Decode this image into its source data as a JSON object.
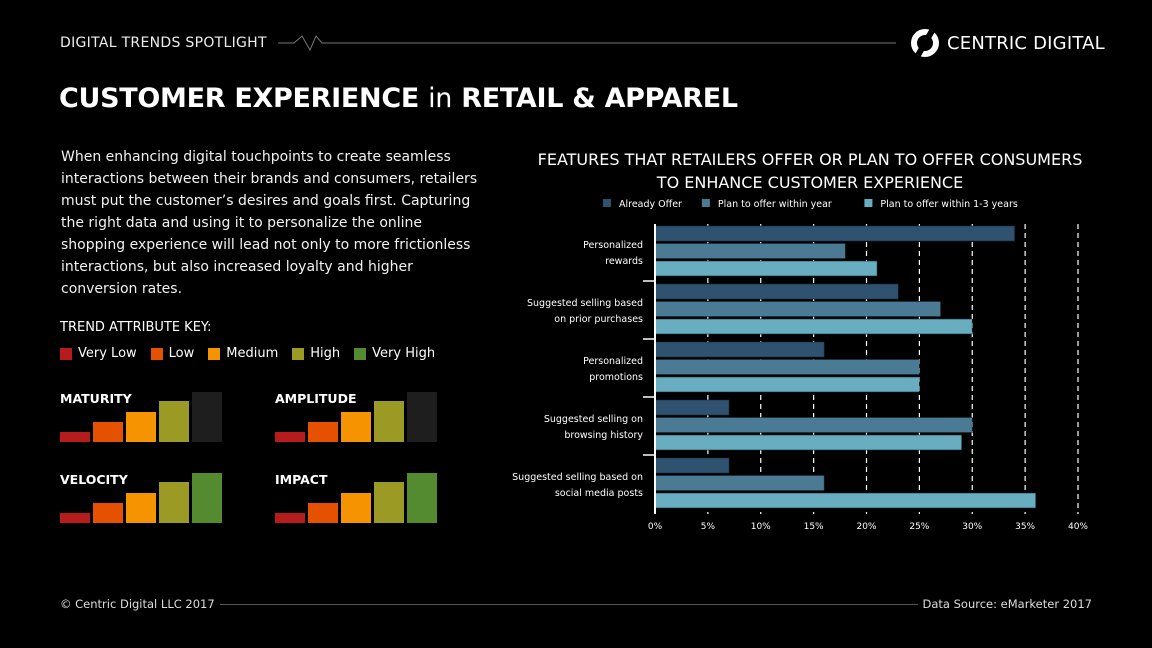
{
  "header": {
    "spotlight": "DIGITAL TRENDS SPOTLIGHT",
    "brand": "CENTRIC DIGITAL"
  },
  "title": {
    "part1": "CUSTOMER EXPERIENCE",
    "part2": "in",
    "part3": "RETAIL & APPAREL"
  },
  "intro": "When enhancing digital touchpoints to create seamless interactions between their brands and consumers, retailers must put the customer’s desires and goals first. Capturing the right data and using it to personalize the online shopping experience will lead not only to more frictionless interactions, but also increased loyalty and higher conversion rates.",
  "key": {
    "title": "TREND ATTRIBUTE KEY:",
    "levels": [
      {
        "label": "Very Low",
        "color": "#b71c1c"
      },
      {
        "label": "Low",
        "color": "#e65100"
      },
      {
        "label": "Medium",
        "color": "#f59400"
      },
      {
        "label": "High",
        "color": "#9a9a24"
      },
      {
        "label": "Very High",
        "color": "#548a30"
      }
    ]
  },
  "attributes": [
    {
      "name": "MATURITY",
      "level": 4
    },
    {
      "name": "AMPLITUDE",
      "level": 4
    },
    {
      "name": "VELOCITY",
      "level": 5
    },
    {
      "name": "IMPACT",
      "level": 5
    }
  ],
  "chart_data": {
    "type": "bar",
    "orientation": "horizontal",
    "title": "FEATURES THAT RETAILERS OFFER OR PLAN TO OFFER CONSUMERS TO ENHANCE CUSTOMER EXPERIENCE",
    "title_lines": [
      "FEATURES THAT RETAILERS OFFER OR PLAN TO OFFER CONSUMERS",
      "TO ENHANCE CUSTOMER EXPERIENCE"
    ],
    "categories": [
      [
        "Personalized",
        "rewards"
      ],
      [
        "Suggested selling based",
        "on prior purchases"
      ],
      [
        "Personalized",
        "promotions"
      ],
      [
        "Suggested selling  on",
        "browsing history"
      ],
      [
        "Suggested selling based on",
        "social media posts"
      ]
    ],
    "series": [
      {
        "name": "Already Offer",
        "color": "#2e5270",
        "values": [
          34,
          23,
          16,
          7,
          7
        ]
      },
      {
        "name": "Plan to offer within year",
        "color": "#4a7a94",
        "values": [
          18,
          27,
          25,
          30,
          16
        ]
      },
      {
        "name": "Plan to offer within 1-3 years",
        "color": "#68adc0",
        "values": [
          21,
          30,
          25,
          29,
          36
        ]
      }
    ],
    "xlim": [
      0,
      40
    ],
    "xticks": [
      "0%",
      "5%",
      "10%",
      "15%",
      "20%",
      "25%",
      "30%",
      "35%",
      "40%"
    ],
    "grid": "vertical dashed",
    "legend": "top"
  },
  "footer": {
    "copyright": "© Centric Digital LLC 2017",
    "source": "Data Source: eMarketer 2017"
  }
}
